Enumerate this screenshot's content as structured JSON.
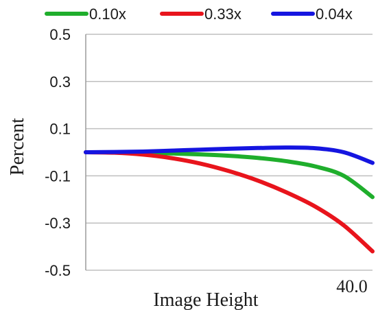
{
  "chart_data": {
    "type": "line",
    "xlabel": "Image Height",
    "ylabel": "Percent",
    "x_tick_labels": [
      {
        "value": 40.0,
        "label": "40.0"
      }
    ],
    "xlim": [
      0,
      40
    ],
    "ylim": [
      -0.5,
      0.5
    ],
    "y_tick_labels": [
      "0.5",
      "0.3",
      "0.1",
      "-0.1",
      "-0.3",
      "-0.5"
    ],
    "y_ticks": [
      0.5,
      0.3,
      0.1,
      -0.1,
      -0.3,
      -0.5
    ],
    "grid": "horizontal",
    "legend": "top",
    "x": [
      0,
      4,
      8,
      12,
      16,
      20,
      24,
      28,
      32,
      36,
      40
    ],
    "series": [
      {
        "name": "0.10x",
        "color": "#1fae2c",
        "values": [
          0.0,
          0.0,
          -0.002,
          -0.005,
          -0.009,
          -0.015,
          -0.024,
          -0.038,
          -0.06,
          -0.1,
          -0.19
        ]
      },
      {
        "name": "0.33x",
        "color": "#e8141c",
        "values": [
          0.0,
          -0.002,
          -0.01,
          -0.025,
          -0.048,
          -0.08,
          -0.12,
          -0.17,
          -0.23,
          -0.31,
          -0.42
        ]
      },
      {
        "name": "0.04x",
        "color": "#1515e0",
        "values": [
          0.0,
          0.001,
          0.003,
          0.007,
          0.011,
          0.015,
          0.018,
          0.02,
          0.017,
          0.0,
          -0.045
        ]
      }
    ]
  }
}
